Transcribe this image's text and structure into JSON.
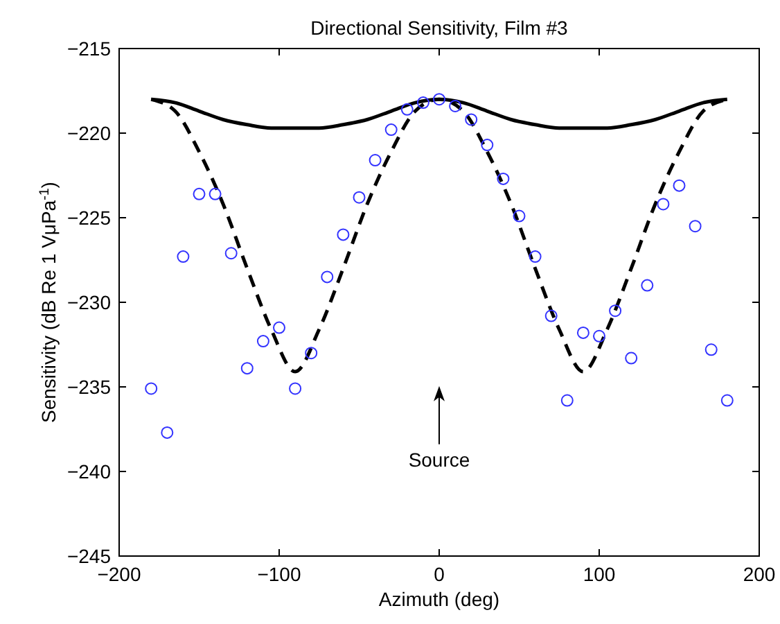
{
  "chart_data": {
    "type": "line",
    "title": "Directional Sensitivity, Film #3",
    "xlabel": "Azimuth (deg)",
    "ylabel": "Sensitivity (dB Re 1 VμPa$^{-1}$)",
    "xlim": [
      -200,
      200
    ],
    "xticks": [
      -200,
      -100,
      0,
      100,
      200
    ],
    "ylim": [
      -245,
      -215
    ],
    "yticks": [
      -245,
      -240,
      -235,
      -230,
      -225,
      -220,
      -215
    ],
    "grid": false,
    "series": [
      {
        "color": "#000000",
        "line_style": "solid",
        "x": [
          -180,
          -165,
          -150,
          -135,
          -120,
          -105,
          -90,
          -75,
          -60,
          -45,
          -30,
          -15,
          0,
          15,
          30,
          45,
          60,
          75,
          90,
          105,
          120,
          135,
          150,
          165,
          180
        ],
        "values": [
          -218.0,
          -218.2,
          -218.7,
          -219.2,
          -219.5,
          -219.7,
          -219.7,
          -219.7,
          -219.5,
          -219.2,
          -218.7,
          -218.2,
          -218.0,
          -218.2,
          -218.7,
          -219.2,
          -219.5,
          -219.7,
          -219.7,
          -219.7,
          -219.5,
          -219.2,
          -218.7,
          -218.2,
          -218.0
        ]
      },
      {
        "color": "#000000",
        "line_style": "dashed",
        "x": [
          -180,
          -165,
          -150,
          -135,
          -120,
          -105,
          -90,
          -75,
          -60,
          -45,
          -30,
          -15,
          0,
          15,
          30,
          45,
          60,
          75,
          90,
          105,
          120,
          135,
          150,
          165,
          180
        ],
        "values": [
          -218.0,
          -218.7,
          -221.1,
          -224.2,
          -228.0,
          -231.6,
          -234.1,
          -231.6,
          -228.0,
          -224.2,
          -221.1,
          -218.7,
          -218.0,
          -218.7,
          -221.1,
          -224.2,
          -228.0,
          -231.6,
          -234.1,
          -231.6,
          -228.0,
          -224.2,
          -221.1,
          -218.7,
          -218.0
        ]
      },
      {
        "type": "scatter",
        "color": "#3333ff",
        "marker": "circle",
        "x": [
          -180,
          -170,
          -160,
          -150,
          -140,
          -130,
          -120,
          -110,
          -100,
          -90,
          -80,
          -70,
          -60,
          -50,
          -40,
          -30,
          -20,
          -10,
          0,
          10,
          20,
          30,
          40,
          50,
          60,
          70,
          80,
          90,
          100,
          110,
          120,
          130,
          140,
          150,
          160,
          170,
          180
        ],
        "values": [
          -235.1,
          -237.7,
          -227.3,
          -223.6,
          -223.6,
          -227.1,
          -233.9,
          -232.3,
          -231.5,
          -235.1,
          -233.0,
          -228.5,
          -226.0,
          -223.8,
          -221.6,
          -219.8,
          -218.6,
          -218.2,
          -218.0,
          -218.4,
          -219.2,
          -220.7,
          -222.7,
          -224.9,
          -227.3,
          -230.8,
          -235.8,
          -231.8,
          -232.0,
          -230.5,
          -233.3,
          -229.0,
          -224.2,
          -223.1,
          -225.5,
          -232.8,
          -235.8
        ]
      }
    ],
    "annotations": [
      "Source"
    ]
  }
}
